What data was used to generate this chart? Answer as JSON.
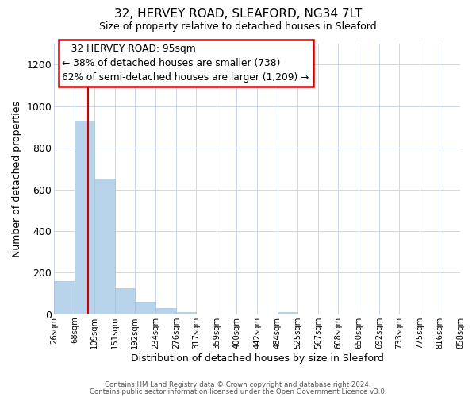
{
  "title": "32, HERVEY ROAD, SLEAFORD, NG34 7LT",
  "subtitle": "Size of property relative to detached houses in Sleaford",
  "xlabel": "Distribution of detached houses by size in Sleaford",
  "ylabel": "Number of detached properties",
  "bar_edges": [
    26,
    68,
    109,
    151,
    192,
    234,
    276,
    317,
    359,
    400,
    442,
    484,
    525,
    567,
    608,
    650,
    692,
    733,
    775,
    816,
    858
  ],
  "bar_heights": [
    160,
    930,
    650,
    125,
    62,
    28,
    10,
    0,
    0,
    0,
    0,
    12,
    0,
    0,
    0,
    0,
    0,
    0,
    0,
    0
  ],
  "bar_color": "#b8d4ea",
  "bar_edge_color": "#b8d4ea",
  "property_line_x": 95,
  "property_line_color": "#cc0000",
  "ylim": [
    0,
    1300
  ],
  "yticks": [
    0,
    200,
    400,
    600,
    800,
    1000,
    1200
  ],
  "annotation_title": "32 HERVEY ROAD: 95sqm",
  "annotation_line1": "← 38% of detached houses are smaller (738)",
  "annotation_line2": "62% of semi-detached houses are larger (1,209) →",
  "footer_line1": "Contains HM Land Registry data © Crown copyright and database right 2024.",
  "footer_line2": "Contains public sector information licensed under the Open Government Licence v3.0.",
  "tick_labels": [
    "26sqm",
    "68sqm",
    "109sqm",
    "151sqm",
    "192sqm",
    "234sqm",
    "276sqm",
    "317sqm",
    "359sqm",
    "400sqm",
    "442sqm",
    "484sqm",
    "525sqm",
    "567sqm",
    "608sqm",
    "650sqm",
    "692sqm",
    "733sqm",
    "775sqm",
    "816sqm",
    "858sqm"
  ],
  "background_color": "#ffffff",
  "grid_color": "#ccd8e8"
}
